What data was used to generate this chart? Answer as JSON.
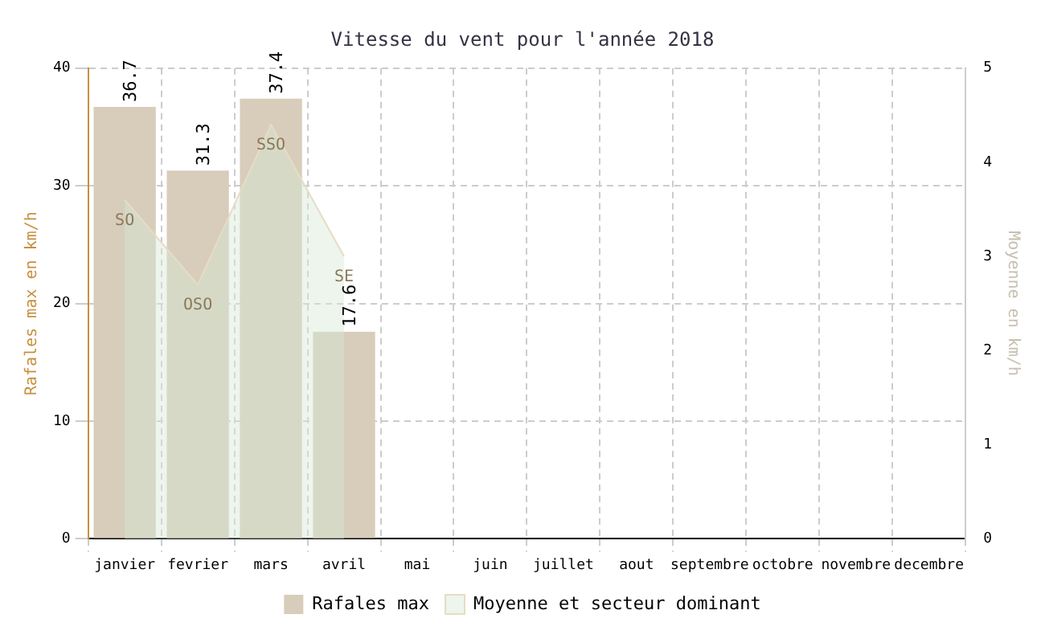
{
  "chart_data": {
    "type": "bar",
    "title": "Vitesse du vent pour l'année 2018",
    "ylabel": "Rafales max en km/h",
    "y2label": "Moyenne en km/h",
    "categories": [
      "janvier",
      "fevrier",
      "mars",
      "avril",
      "mai",
      "juin",
      "juillet",
      "aout",
      "septembre",
      "octobre",
      "novembre",
      "decembre"
    ],
    "series": [
      {
        "name": "Rafales max",
        "color": "#d8cdbb",
        "values": [
          36.7,
          31.3,
          37.4,
          17.6,
          null,
          null,
          null,
          null,
          null,
          null,
          null,
          null
        ],
        "value_labels": [
          "36.7",
          "31.3",
          "37.4",
          "17.6",
          null,
          null,
          null,
          null,
          null,
          null,
          null,
          null
        ]
      },
      {
        "name": "Moyenne et secteur dominant",
        "type": "area",
        "axis": "y2",
        "color": "#e6dcc4",
        "values": [
          3.6,
          2.7,
          4.4,
          3.0,
          null,
          null,
          null,
          null,
          null,
          null,
          null,
          null
        ]
      }
    ],
    "ylim": [
      0,
      40
    ],
    "yticks": [
      0,
      10,
      20,
      30,
      40
    ],
    "y2lim": [
      0,
      5
    ],
    "y2ticks": [
      0,
      1,
      2,
      3,
      4,
      5
    ],
    "annotations": [
      "SO",
      "OSO",
      "SSO",
      "SE"
    ],
    "grid": true,
    "legend": "bottom"
  }
}
